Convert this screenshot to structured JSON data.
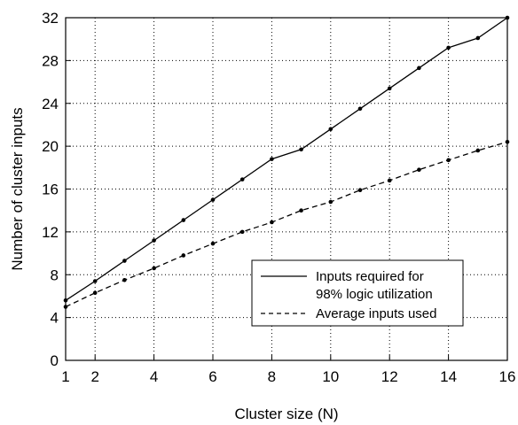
{
  "chart_data": {
    "type": "line",
    "xlabel": "Cluster size (N)",
    "ylabel": "Number of cluster inputs",
    "xlim": [
      1,
      16
    ],
    "ylim": [
      0,
      32
    ],
    "x_ticks": [
      1,
      2,
      4,
      6,
      8,
      10,
      12,
      14,
      16
    ],
    "y_ticks": [
      0,
      4,
      8,
      12,
      16,
      20,
      24,
      28,
      32
    ],
    "x_tick_labels": [
      "1",
      "2",
      "4",
      "6",
      "8",
      "10",
      "12",
      "14",
      "16"
    ],
    "y_tick_labels": [
      "0",
      "4",
      "8",
      "12",
      "16",
      "20",
      "24",
      "28",
      "32"
    ],
    "grid": true,
    "grid_style": "dotted",
    "legend_position": "lower-right",
    "series": [
      {
        "name": "Inputs required for 98% logic utilization",
        "legend_lines": [
          "Inputs required for",
          "98% logic utilization"
        ],
        "line_style": "solid",
        "color": "#000000",
        "x": [
          1,
          2,
          3,
          4,
          5,
          6,
          7,
          8,
          9,
          10,
          11,
          12,
          13,
          14,
          15,
          16
        ],
        "values": [
          5.6,
          7.4,
          9.3,
          11.2,
          13.1,
          15.0,
          16.9,
          18.8,
          19.7,
          21.6,
          23.5,
          25.4,
          27.3,
          29.2,
          30.1,
          32.0
        ]
      },
      {
        "name": "Average inputs used",
        "legend_lines": [
          "Average inputs used"
        ],
        "line_style": "dashed",
        "color": "#000000",
        "x": [
          1,
          2,
          3,
          4,
          5,
          6,
          7,
          8,
          9,
          10,
          11,
          12,
          13,
          14,
          15,
          16
        ],
        "values": [
          5.0,
          6.3,
          7.5,
          8.6,
          9.8,
          10.9,
          12.0,
          12.9,
          14.0,
          14.8,
          15.9,
          16.8,
          17.8,
          18.7,
          19.6,
          20.4
        ]
      }
    ]
  }
}
